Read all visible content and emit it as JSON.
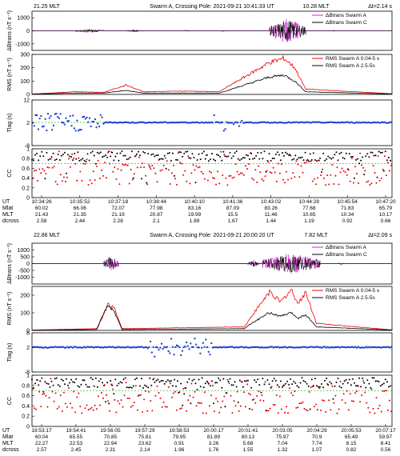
{
  "chart_data": [
    {
      "type": "line",
      "header": {
        "mlt": "21.25 MLT",
        "title": "Swarm A, Crossing Pole: 2021-09-21   10:41:33 UT",
        "mlt2": "10.28 MLT",
        "dt": "Δt=2.14 s"
      },
      "panels": {
        "b": {
          "ylabel": "ΔBtrans",
          "unit": "(nT s⁻¹)",
          "yticks": [
            "1000",
            "0",
            "-1000"
          ],
          "ylim": [
            -1500,
            1500
          ],
          "legend": [
            "ΔBtrans Swarm A",
            "ΔBtrans Swarm C"
          ],
          "bursts": [
            [
              0.12,
              0.2,
              150
            ],
            [
              0.26,
              0.31,
              100
            ],
            [
              0.42,
              0.44,
              80
            ],
            [
              0.52,
              0.54,
              60
            ],
            [
              0.66,
              0.76,
              1000
            ],
            [
              0.83,
              0.85,
              60
            ]
          ]
        },
        "rms": {
          "ylabel": "RMS",
          "unit": "(nT s⁻¹)",
          "yticks": [
            "300",
            "200",
            "100",
            "0"
          ],
          "ylim": [
            0,
            300
          ],
          "legend": [
            "RMS Swarm A 0.04-5 s",
            "RMS Swarm A 2.5-5s"
          ],
          "red": [
            [
              0,
              3
            ],
            [
              0.12,
              20
            ],
            [
              0.2,
              15
            ],
            [
              0.26,
              70
            ],
            [
              0.31,
              20
            ],
            [
              0.42,
              25
            ],
            [
              0.52,
              20
            ],
            [
              0.66,
              240
            ],
            [
              0.7,
              270
            ],
            [
              0.73,
              200
            ],
            [
              0.76,
              40
            ],
            [
              1,
              5
            ]
          ],
          "black": [
            [
              0,
              2
            ],
            [
              0.12,
              10
            ],
            [
              0.2,
              10
            ],
            [
              0.26,
              30
            ],
            [
              0.31,
              10
            ],
            [
              0.42,
              10
            ],
            [
              0.52,
              10
            ],
            [
              0.66,
              130
            ],
            [
              0.7,
              145
            ],
            [
              0.73,
              100
            ],
            [
              0.76,
              20
            ],
            [
              1,
              3
            ]
          ]
        },
        "tlag": {
          "ylabel": "Tlag",
          "unit": "(s)",
          "yticks": [
            "12",
            "2",
            "-8"
          ],
          "ylim": [
            -8,
            12
          ],
          "ref": 2.14,
          "mode": "noisy-left"
        },
        "cc": {
          "ylabel": "CC",
          "yticks": [
            "1",
            "0.8",
            "0.6",
            "0.4",
            "0.2",
            "0"
          ],
          "ylim": [
            0,
            1
          ],
          "ref": 0.7
        }
      },
      "ticks": {
        "labels": [
          "UT",
          "Mlat",
          "MLT",
          "dcross"
        ],
        "UT": [
          "10:34:26",
          "10:35:52",
          "10:37:18",
          "10:38:44",
          "10:40:10",
          "10:41:36",
          "10:43:02",
          "10:44:28",
          "10:45:54",
          "10:47:20"
        ],
        "Mlat": [
          "60.02",
          "66.06",
          "72.07",
          "77.98",
          "83.16",
          "87.09",
          "83.26",
          "77.68",
          "71.83",
          "65.79"
        ],
        "MLT": [
          "21.43",
          "21.35",
          "21.19",
          "20.87",
          "19.99",
          "15.5",
          "11.46",
          "10.65",
          "10.34",
          "10.17"
        ],
        "dcross": [
          "2.58",
          "2.44",
          "2.28",
          "2.1",
          "1.89",
          "1.67",
          "1.44",
          "1.19",
          "0.92",
          "0.66"
        ]
      }
    },
    {
      "type": "line",
      "header": {
        "mlt": "22.86 MLT",
        "title": "Swarm A, Crossing Pole: 2021-09-21   20:00:20 UT",
        "mlt2": "7.82 MLT",
        "dt": "Δt=2.09 s"
      },
      "panels": {
        "b": {
          "ylabel": "ΔBtrans",
          "unit": "(nT s⁻¹)",
          "yticks": [
            "1000",
            "500",
            "0",
            "-500",
            "-1000"
          ],
          "ylim": [
            -1500,
            1500
          ],
          "legend": [
            "ΔBtrans Swarm A",
            "ΔBtrans Swarm C"
          ],
          "bursts": [
            [
              0.2,
              0.24,
              600
            ],
            [
              0.6,
              0.63,
              300
            ],
            [
              0.64,
              0.8,
              800
            ],
            [
              0.85,
              0.87,
              100
            ]
          ]
        },
        "rms": {
          "ylabel": "RMS",
          "unit": "(nT s⁻¹)",
          "yticks": [
            "200",
            "100",
            "0"
          ],
          "ylim": [
            0,
            250
          ],
          "legend": [
            "RMS Swarm A 0.04-5 s",
            "RMS Swarm A 2.5-5s"
          ],
          "red": [
            [
              0,
              2
            ],
            [
              0.18,
              10
            ],
            [
              0.21,
              150
            ],
            [
              0.23,
              120
            ],
            [
              0.25,
              10
            ],
            [
              0.59,
              20
            ],
            [
              0.61,
              80
            ],
            [
              0.66,
              220
            ],
            [
              0.69,
              160
            ],
            [
              0.72,
              230
            ],
            [
              0.74,
              150
            ],
            [
              0.76,
              220
            ],
            [
              0.79,
              40
            ],
            [
              1,
              3
            ]
          ],
          "black": [
            [
              0,
              1
            ],
            [
              0.18,
              5
            ],
            [
              0.21,
              145
            ],
            [
              0.23,
              100
            ],
            [
              0.25,
              5
            ],
            [
              0.59,
              10
            ],
            [
              0.61,
              40
            ],
            [
              0.66,
              100
            ],
            [
              0.69,
              80
            ],
            [
              0.72,
              100
            ],
            [
              0.74,
              70
            ],
            [
              0.76,
              90
            ],
            [
              0.79,
              20
            ],
            [
              1,
              2
            ]
          ]
        },
        "tlag": {
          "ylabel": "Tlag",
          "unit": "(s)",
          "yticks": [
            "8",
            "2",
            "-8"
          ],
          "ylim": [
            -8,
            8
          ],
          "ref": 2.09,
          "mode": "noisy-mid"
        },
        "cc": {
          "ylabel": "CC",
          "yticks": [
            "1",
            "0.8",
            "0.6",
            "0.4",
            "0.2",
            "0"
          ],
          "ylim": [
            0,
            1
          ],
          "ref": 0.7
        }
      },
      "ticks": {
        "labels": [
          "UT",
          "Mlat",
          "MLT",
          "dcross"
        ],
        "UT": [
          "19:53:17",
          "19:54:41",
          "19:56:05",
          "19:57:29",
          "19:58:53",
          "20:00:17",
          "20:01:41",
          "20:03:05",
          "20:04:29",
          "20:05:53",
          "20:07:17"
        ],
        "Mlat": [
          "60.04",
          "65.55",
          "70.85",
          "75.81",
          "79.95",
          "81.89",
          "80.13",
          "75.97",
          "70.9",
          "65.49",
          "59.97"
        ],
        "MLT": [
          "22.27",
          "22.53",
          "22.94",
          "23.62",
          "0.91",
          "3.26",
          "5.68",
          "7.04",
          "7.74",
          "8.15",
          "8.41"
        ],
        "dcross": [
          "2.57",
          "2.45",
          "2.31",
          "2.14",
          "1.96",
          "1.76",
          "1.55",
          "1.32",
          "1.07",
          "0.82",
          "0.56"
        ]
      }
    }
  ]
}
